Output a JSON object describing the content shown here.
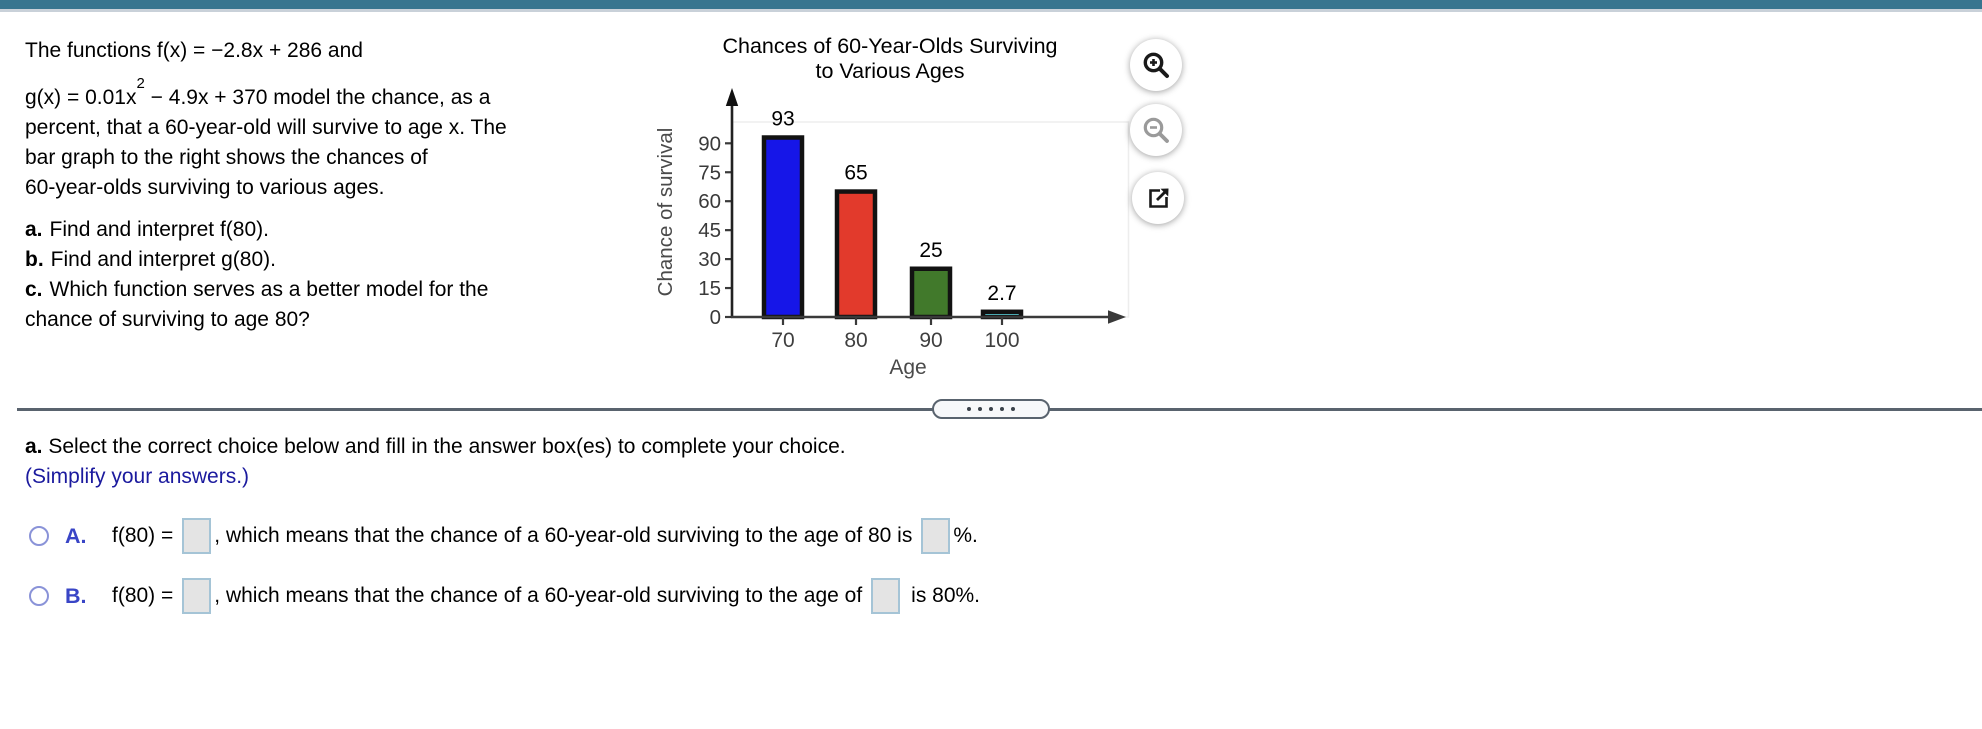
{
  "page": {
    "top_bar_color": "#37758F",
    "divider_color": "#59636E"
  },
  "problem": {
    "line1": "The functions f(x) = −2.8x + 286 and",
    "line2_pre": "g(x) = 0.01x",
    "line2_sup": "2",
    "line2_post": " − 4.9x + 370 model the chance, as a",
    "line3": "percent, that a 60-year-old will survive to age x. The",
    "line4": "bar graph to the right shows the chances of",
    "line5": "60-year-olds surviving to various ages.",
    "items": [
      {
        "label": "a.",
        "text": "Find and interpret f(80)."
      },
      {
        "label": "b.",
        "text": "Find and interpret g(80)."
      },
      {
        "label": "c.",
        "text": "Which function serves as a better model for the"
      }
    ],
    "item_c_line2": "chance of surviving to age 80?"
  },
  "chart_data": {
    "type": "bar",
    "title": "Chances of 60-Year-Olds Surviving to Various Ages",
    "title_lines": [
      "Chances of 60-Year-Olds Surviving",
      "to Various Ages"
    ],
    "xlabel": "Age",
    "ylabel": "Chance of survival",
    "categories": [
      "70",
      "80",
      "90",
      "100"
    ],
    "values": [
      93,
      65,
      25,
      2.7
    ],
    "value_labels": [
      "93",
      "65",
      "25",
      "2.7"
    ],
    "bar_colors": [
      "#1616E8",
      "#E23A2C",
      "#41792B",
      "#62E8F4"
    ],
    "bar_border_color": "#121212",
    "y_ticks": [
      0,
      15,
      30,
      45,
      60,
      75,
      90
    ],
    "ylim": [
      0,
      103
    ],
    "grid": false,
    "legend_position": "none"
  },
  "icons": [
    {
      "name": "zoom-in-icon"
    },
    {
      "name": "zoom-out-icon"
    },
    {
      "name": "open-in-new-window-icon"
    }
  ],
  "divider": {
    "dots": 5
  },
  "answer": {
    "instruction_label": "a.",
    "instruction_text": " Select the correct choice below and fill in the answer box(es) to complete your choice.",
    "simplify_note": "(Simplify your answers.)",
    "options": [
      {
        "letter": "A.",
        "expr": "f(80) =",
        "mid": ", which means that the chance of a 60-year-old surviving to the age of 80 is",
        "suffix": "%."
      },
      {
        "letter": "B.",
        "expr": "f(80) =",
        "mid": ", which means that the chance of a 60-year-old surviving to the age of",
        "suffix": "is 80%."
      }
    ]
  }
}
